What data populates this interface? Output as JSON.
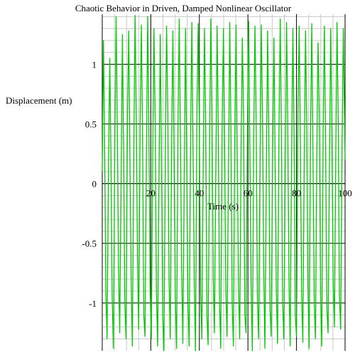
{
  "chart_data": {
    "type": "line",
    "title": "Chaotic Behavior in Driven, Damped Nonlinear Oscillator",
    "xlabel": "Time (s)",
    "ylabel": "Displacement (m)",
    "xlim": [
      0,
      100
    ],
    "ylim": [
      -1.4,
      1.42
    ],
    "xticks": [
      20,
      40,
      60,
      80,
      100
    ],
    "xtick_labels": [
      "20",
      "40",
      "60",
      "80",
      "100"
    ],
    "yticks": [
      -1,
      -0.5,
      0,
      0.5,
      1
    ],
    "ytick_labels": [
      "-1",
      "-0.5",
      "0",
      "0.5",
      "1"
    ],
    "grid": true,
    "line_color": "#00c800",
    "grid_major_color": "#000000",
    "grid_minor_color": "#c8c8c8",
    "series": [
      {
        "name": "",
        "x": [
          0,
          0.5,
          1,
          1.5,
          2,
          2.6,
          3.1,
          3.6,
          4.1,
          4.6,
          5.2,
          5.7,
          6.2,
          6.7,
          7.2,
          7.8,
          8.3,
          8.8,
          9.3,
          9.8,
          10.4,
          10.9,
          11.4,
          11.9,
          12.4,
          13,
          13.5,
          14,
          14.5,
          15,
          15.6,
          16.1,
          16.6,
          17.1,
          17.6,
          18.2,
          18.7,
          19.2,
          19.7,
          20.2,
          20.8,
          21.3,
          21.8,
          22.3,
          22.8,
          23.4,
          23.9,
          24.4,
          24.9,
          25.4,
          26,
          26.5,
          27,
          27.5,
          28,
          28.6,
          29.1,
          29.6,
          30.1,
          30.6,
          31.2,
          31.7,
          32.2,
          32.7,
          33.2,
          33.8,
          34.3,
          34.8,
          35.3,
          35.8,
          36.4,
          36.9,
          37.4,
          37.9,
          38.4,
          39,
          39.5,
          40,
          40.5,
          41,
          41.6,
          42.1,
          42.6,
          43.1,
          43.6,
          44.2,
          44.7,
          45.2,
          45.7,
          46.2,
          46.8,
          47.3,
          47.8,
          48.3,
          48.8,
          49.4,
          49.9,
          50.4,
          50.9,
          51.4,
          52,
          52.5,
          53,
          53.5,
          54,
          54.6,
          55.1,
          55.6,
          56.1,
          56.6,
          57.2,
          57.7,
          58.2,
          58.7,
          59.2,
          59.8,
          60.3,
          60.8,
          61.3,
          61.8,
          62.4,
          62.9,
          63.4,
          63.9,
          64.4,
          65,
          65.5,
          66,
          66.5,
          67,
          67.6,
          68.1,
          68.6,
          69.1,
          69.6,
          70.2,
          70.7,
          71.2,
          71.7,
          72.2,
          72.8,
          73.3,
          73.8,
          74.3,
          74.8,
          75.4,
          75.9,
          76.4,
          76.9,
          77.4,
          78,
          78.5,
          79,
          79.5,
          80,
          80.6,
          81.1,
          81.6,
          82.1,
          82.6,
          83.2,
          83.7,
          84.2,
          84.7,
          85.2,
          85.8,
          86.3,
          86.8,
          87.3,
          87.8,
          88.4,
          88.9,
          89.4,
          89.9,
          90.4,
          91,
          91.5,
          92,
          92.5,
          93,
          93.6,
          94.1,
          94.6,
          95.1,
          95.6,
          96.2,
          96.7,
          97.2,
          97.7,
          98.2,
          98.8,
          99.3,
          100
        ],
        "y": [
          0.1,
          1.2,
          0.3,
          -0.9,
          -1.3,
          0.2,
          1.05,
          0.2,
          -0.95,
          -1.38,
          0.4,
          1.4,
          0.5,
          -0.7,
          -1.25,
          0.1,
          1.25,
          0.3,
          -1.0,
          -1.3,
          0.6,
          1.28,
          0.2,
          -0.8,
          -1.36,
          0.3,
          1.41,
          0.6,
          -0.6,
          -1.22,
          0.5,
          1.33,
          0.4,
          -1.1,
          -1.28,
          0.2,
          1.4,
          0.5,
          -0.85,
          -1.3,
          0.2,
          1.3,
          0.5,
          -0.9,
          -1.36,
          0.1,
          1.25,
          0.2,
          -1.1,
          -1.4,
          0.3,
          1.32,
          0.6,
          -0.8,
          -1.3,
          0.4,
          1.28,
          0.2,
          -0.95,
          -1.38,
          0.5,
          1.38,
          0.4,
          -0.7,
          -1.34,
          0.1,
          1.3,
          0.2,
          -1.0,
          -1.36,
          0.4,
          1.35,
          0.3,
          -0.8,
          -1.4,
          0.6,
          1.34,
          0.4,
          -0.9,
          -1.3,
          0.2,
          1.3,
          0.5,
          -1.1,
          -1.35,
          0.3,
          1.38,
          0.6,
          -0.8,
          -1.25,
          0.2,
          1.32,
          0.4,
          -1.0,
          -1.38,
          0.5,
          1.3,
          0.3,
          -0.9,
          -1.28,
          0.1,
          1.35,
          0.4,
          -1.0,
          -1.36,
          0.4,
          1.33,
          0.2,
          -0.85,
          -1.3,
          0.3,
          1.22,
          0.6,
          -1.1,
          -1.25,
          0.5,
          1.36,
          0.3,
          -0.8,
          -1.4,
          0.4,
          1.32,
          0.5,
          -0.95,
          -1.3,
          0.2,
          1.33,
          0.6,
          -0.7,
          -1.38,
          0.1,
          1.28,
          0.4,
          -1.05,
          -1.28,
          0.3,
          1.22,
          0.2,
          -0.9,
          -1.34,
          0.5,
          1.38,
          0.4,
          -1.0,
          -1.3,
          0.2,
          1.35,
          0.5,
          -0.8,
          -1.36,
          0.3,
          1.3,
          0.4,
          -1.1,
          -1.28,
          0.6,
          1.32,
          0.3,
          -0.9,
          -1.33,
          0.2,
          1.28,
          0.5,
          -0.85,
          -1.38,
          0.4,
          1.34,
          0.2,
          -1.0,
          -1.3,
          0.3,
          1.18,
          0.6,
          -0.9,
          -1.36,
          0.5,
          1.32,
          0.3,
          -1.05,
          -1.25,
          0.2,
          1.3,
          0.4,
          -0.8,
          -1.2,
          0.3,
          1.35,
          0.5,
          -0.95,
          -1.22,
          0.4,
          1.3,
          0.2
        ]
      }
    ]
  }
}
